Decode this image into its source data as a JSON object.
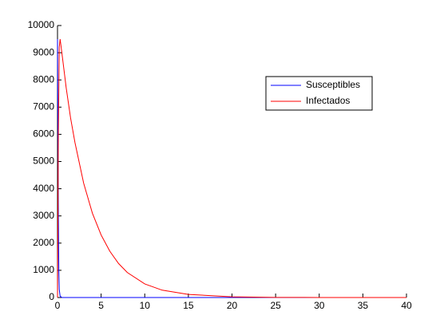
{
  "chart_data": {
    "type": "line",
    "series": [
      {
        "name": "Susceptibles",
        "color": "#0000ff",
        "x": [
          0,
          0.05,
          0.1,
          0.15,
          0.2,
          0.3,
          0.5,
          1,
          40
        ],
        "values": [
          9500,
          6000,
          3000,
          1000,
          300,
          50,
          0,
          0,
          0
        ]
      },
      {
        "name": "Infectados",
        "color": "#ff0000",
        "x": [
          0,
          0.1,
          0.2,
          0.3,
          0.5,
          1,
          1.5,
          2,
          3,
          4,
          5,
          6,
          7,
          8,
          10,
          12,
          15,
          20,
          25,
          30,
          40
        ],
        "values": [
          0,
          6000,
          9200,
          9500,
          9000,
          7700,
          6600,
          5700,
          4200,
          3100,
          2300,
          1700,
          1250,
          920,
          500,
          270,
          115,
          25,
          5,
          1,
          0
        ]
      }
    ],
    "xlim": [
      0,
      40
    ],
    "xticks": [
      0,
      5,
      10,
      15,
      20,
      25,
      30,
      35,
      40
    ],
    "ylim": [
      0,
      10000
    ],
    "yticks": [
      0,
      1000,
      2000,
      3000,
      4000,
      5000,
      6000,
      7000,
      8000,
      9000,
      10000
    ],
    "legend": "upper-right"
  }
}
